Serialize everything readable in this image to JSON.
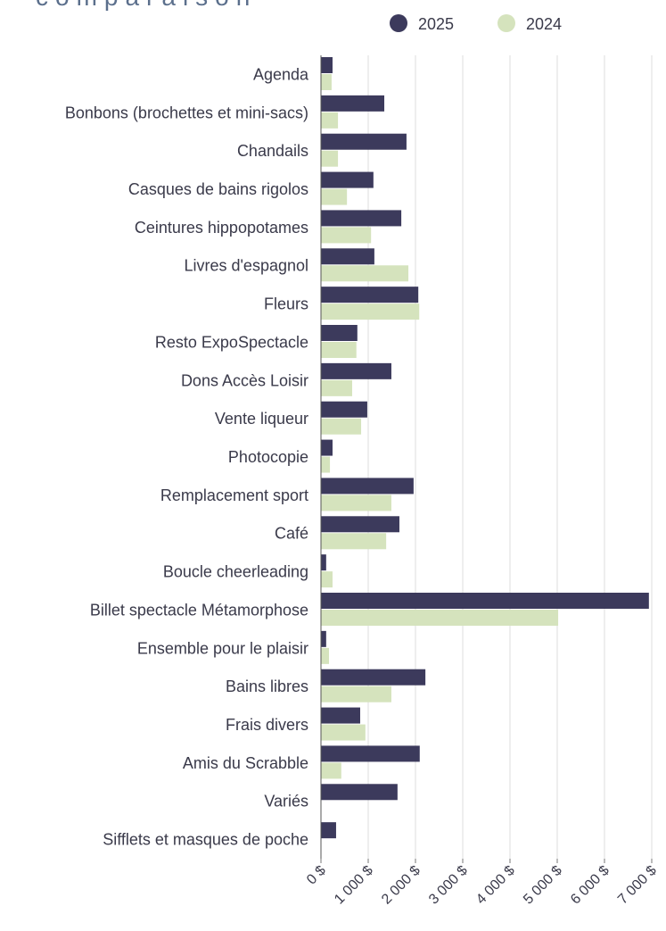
{
  "chart_data": {
    "type": "barh",
    "title": "comparaison",
    "categories": [
      "Agenda",
      "Bonbons (brochettes et mini-sacs)",
      "Chandails",
      "Casques de bains rigolos",
      "Ceintures hippopotames",
      "Livres d'espagnol",
      "Fleurs",
      "Resto ExpoSpectacle",
      "Dons Accès Loisir",
      "Vente liqueur",
      "Photocopie",
      "Remplacement sport",
      "Café",
      "Boucle cheerleading",
      "Billet spectacle Métamorphose",
      "Ensemble pour le plaisir",
      "Bains libres",
      "Frais divers",
      "Amis du Scrabble",
      "Variés",
      "Sifflets et masques de poche"
    ],
    "series": [
      {
        "name": "2025",
        "color": "#3c3a5c",
        "values": [
          245,
          1340,
          1810,
          1110,
          1700,
          1130,
          2060,
          770,
          1490,
          980,
          245,
          1960,
          1660,
          110,
          6940,
          110,
          2210,
          830,
          2090,
          1620,
          320
        ]
      },
      {
        "name": "2024",
        "color": "#d5e3bd",
        "values": [
          225,
          360,
          360,
          550,
          1060,
          1850,
          2080,
          750,
          660,
          850,
          190,
          1490,
          1380,
          245,
          5020,
          170,
          1490,
          940,
          430,
          null,
          null
        ]
      }
    ],
    "xlim": [
      0,
      7000
    ],
    "xticks": [
      {
        "value": 0,
        "label": "0 $"
      },
      {
        "value": 1000,
        "label": "1 000 $"
      },
      {
        "value": 2000,
        "label": "2 000 $"
      },
      {
        "value": 3000,
        "label": "3 000 $"
      },
      {
        "value": 4000,
        "label": "4 000 $"
      },
      {
        "value": 5000,
        "label": "5 000 $"
      },
      {
        "value": 6000,
        "label": "6 000 $"
      },
      {
        "value": 7000,
        "label": "7 000 $"
      }
    ],
    "grid": true,
    "legend": "top"
  }
}
